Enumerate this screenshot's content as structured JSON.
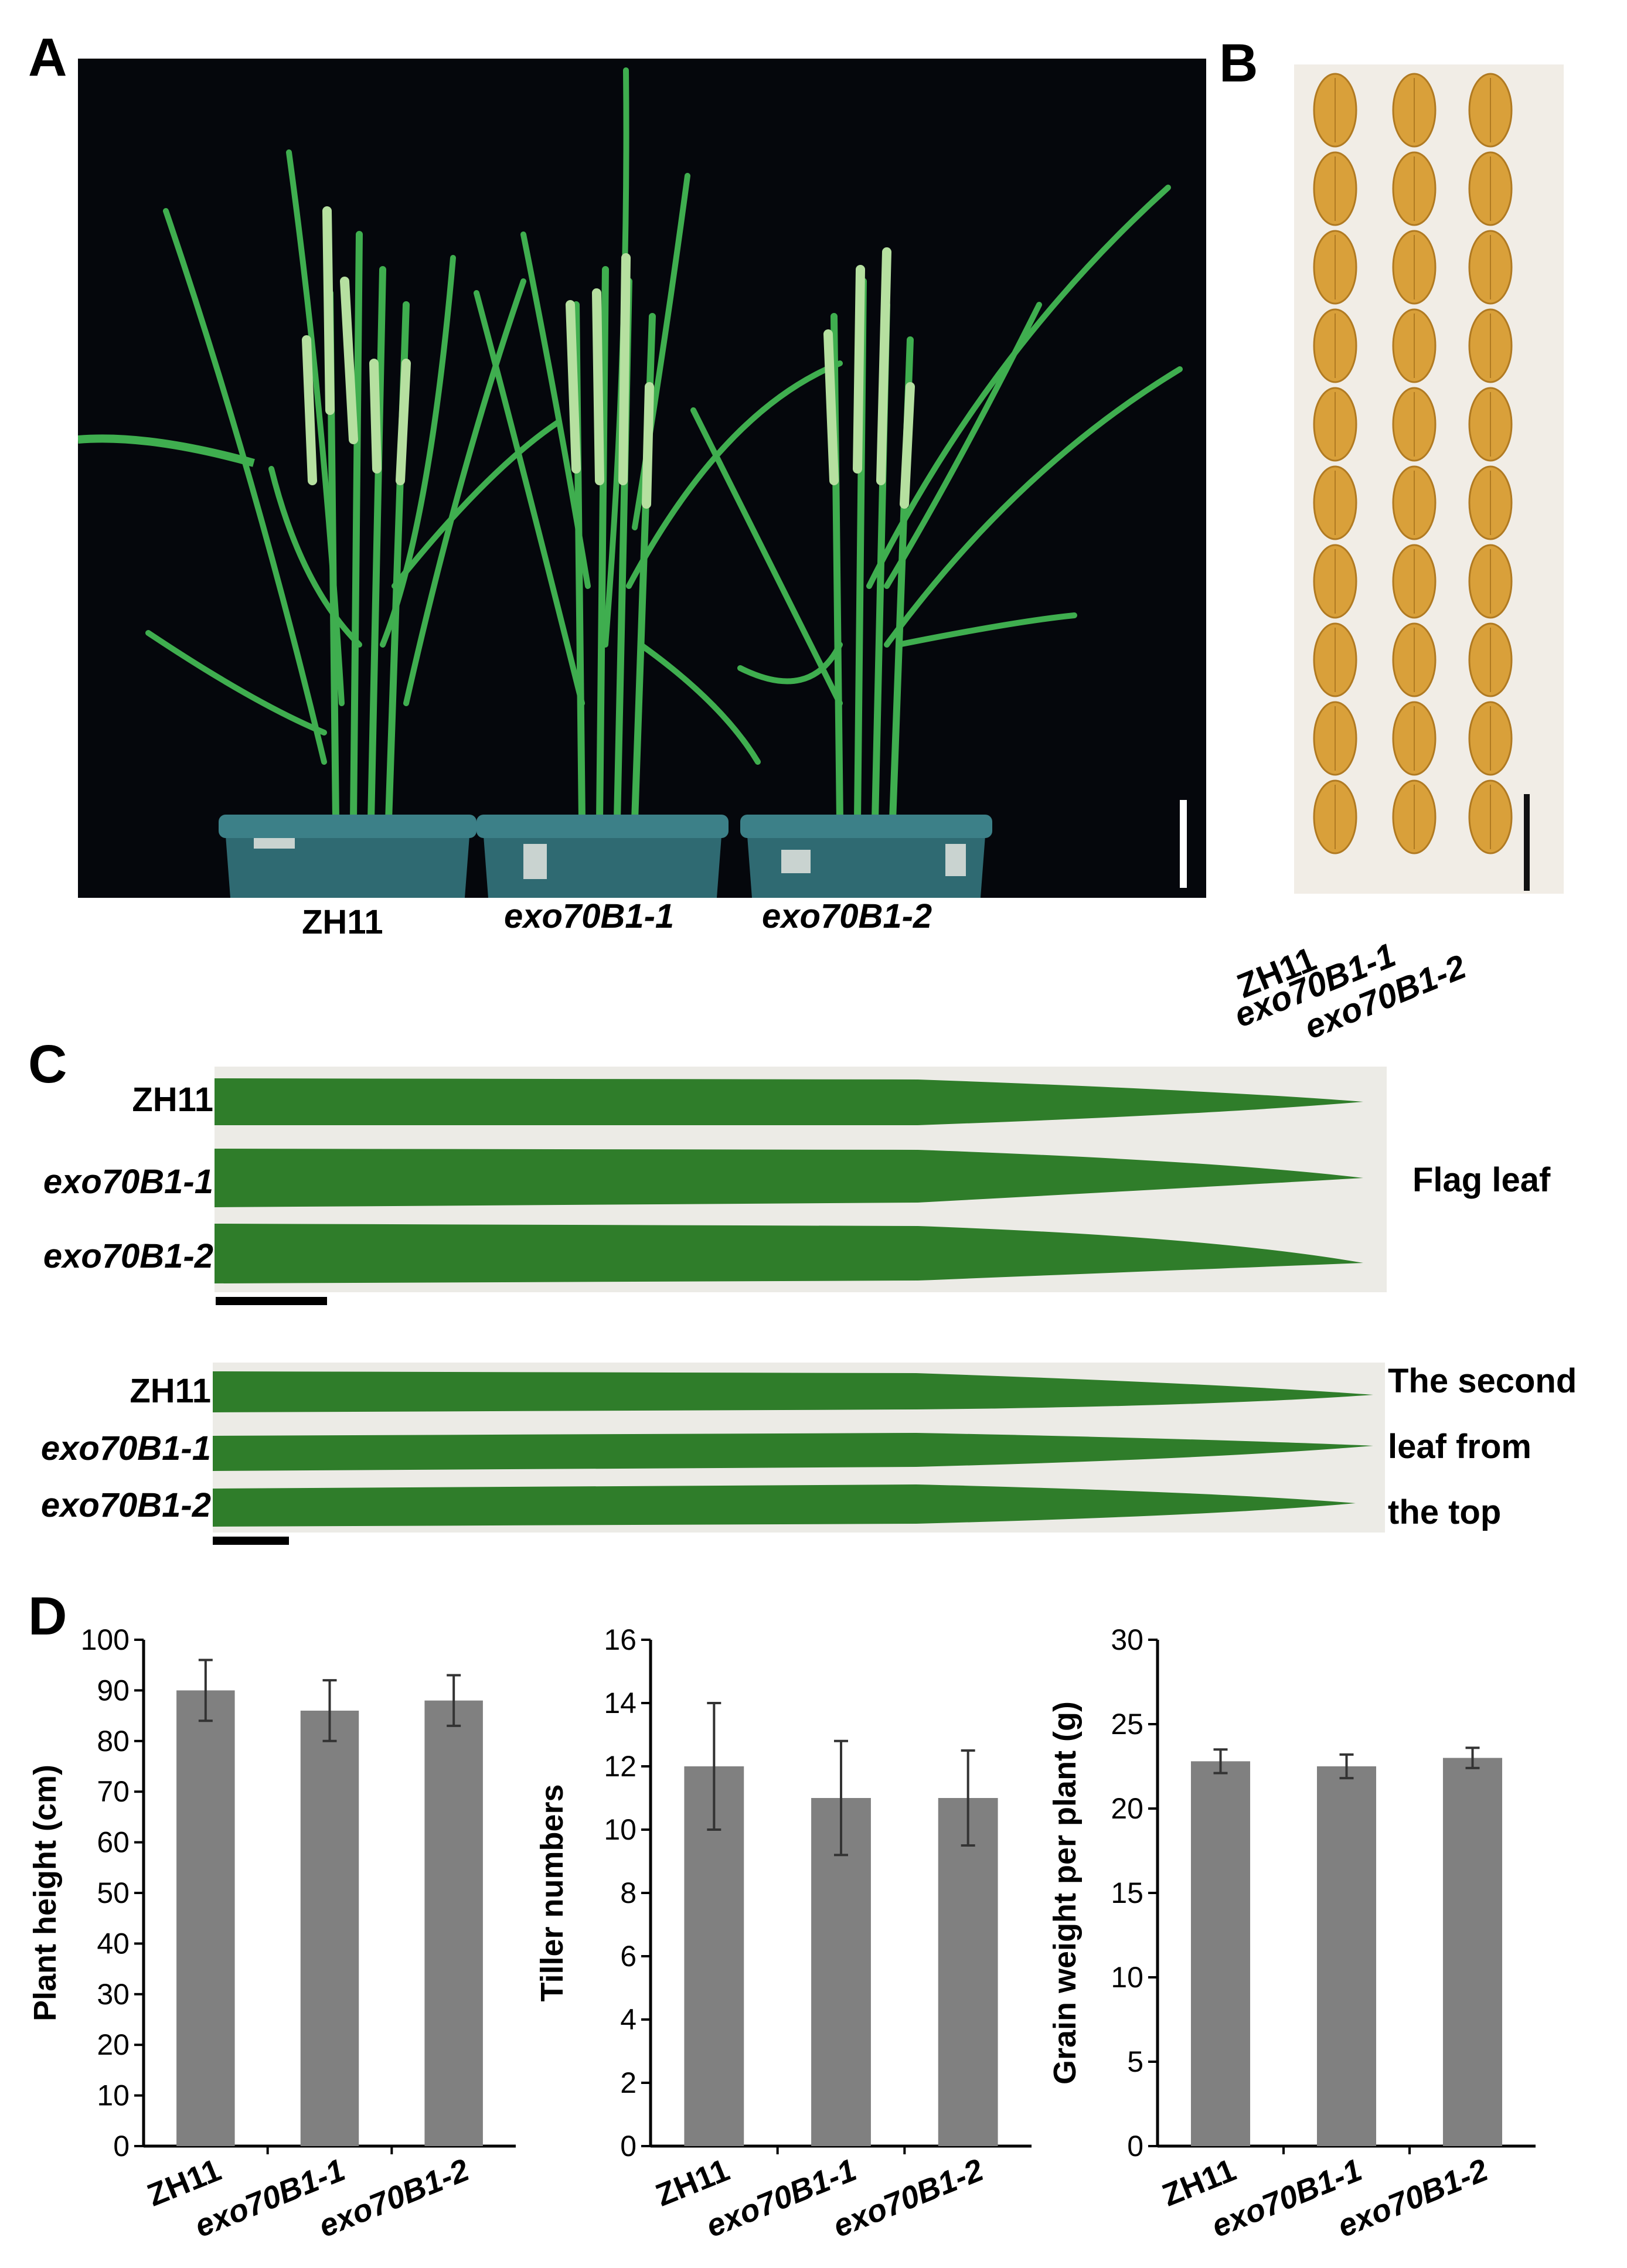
{
  "panels": {
    "A": {
      "letter": "A",
      "labels": [
        "ZH11",
        "exo70B1-1",
        "exo70B1-2"
      ]
    },
    "B": {
      "letter": "B",
      "labels": [
        "ZH11",
        "exo70B1-1",
        "exo70B1-2"
      ],
      "grains_per_column": 10
    },
    "C": {
      "letter": "C",
      "flag": {
        "labels": [
          "ZH11",
          "exo70B1-1",
          "exo70B1-2"
        ],
        "side_label": "Flag leaf"
      },
      "second": {
        "labels": [
          "ZH11",
          "exo70B1-1",
          "exo70B1-2"
        ],
        "side_label_lines": [
          "The second",
          "leaf from",
          "the top"
        ]
      }
    },
    "D": {
      "letter": "D"
    }
  },
  "colors": {
    "photo_background": "#05070c",
    "leaf_green": "#2f7d2a",
    "plant_green": "#3fae4f",
    "pot_teal": "#2f6a72",
    "grain": "#d9a03a",
    "grain_paper": "#f1ede6",
    "bar": "#808080"
  },
  "chart_data": [
    {
      "type": "bar",
      "categories": [
        "ZH11",
        "exo70B1-1",
        "exo70B1-2"
      ],
      "values": [
        90,
        86,
        88
      ],
      "errors": [
        6,
        6,
        5
      ],
      "ylabel": "Plant height (cm)",
      "ylim": [
        0,
        100
      ],
      "yticks": [
        0,
        10,
        20,
        30,
        40,
        50,
        60,
        70,
        80,
        90,
        100
      ]
    },
    {
      "type": "bar",
      "categories": [
        "ZH11",
        "exo70B1-1",
        "exo70B1-2"
      ],
      "values": [
        12,
        11,
        11
      ],
      "errors": [
        2,
        1.8,
        1.5
      ],
      "ylabel": "Tiller numbers",
      "ylim": [
        0,
        16
      ],
      "yticks": [
        0,
        2,
        4,
        6,
        8,
        10,
        12,
        14,
        16
      ]
    },
    {
      "type": "bar",
      "categories": [
        "ZH11",
        "exo70B1-1",
        "exo70B1-2"
      ],
      "values": [
        22.8,
        22.5,
        23.0
      ],
      "errors": [
        0.7,
        0.7,
        0.6
      ],
      "ylabel": "Grain weight per plant (g)",
      "ylim": [
        0,
        30
      ],
      "yticks": [
        0,
        5,
        10,
        15,
        20,
        25,
        30
      ]
    }
  ]
}
